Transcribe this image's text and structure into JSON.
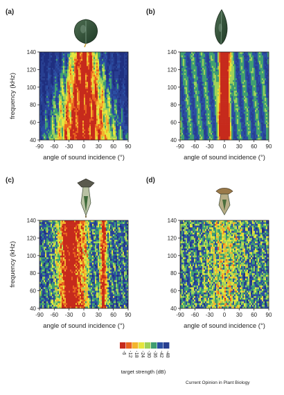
{
  "colors": {
    "scale": [
      "#c62a1c",
      "#e8641f",
      "#f3b42d",
      "#e5e53d",
      "#9ed15a",
      "#3f9e72",
      "#2b4fa3",
      "#283f91",
      "#1f2f80"
    ],
    "axis": "#222222"
  },
  "icons": [
    "leaf-icon",
    "pointed-leaf-icon",
    "pitcher-flower-icon",
    "open-pitcher-flower-icon"
  ],
  "credit": "Current Opinion in Plant Biology",
  "chart_data": [
    {
      "type": "heatmap",
      "panel_label": "(a)",
      "title": "",
      "xlabel": "angle of sound incidence (°)",
      "ylabel": "frequency (kHz)",
      "xlim": [
        -90,
        90
      ],
      "ylim": [
        40,
        140
      ],
      "xticks": [
        "-90",
        "-60",
        "-30",
        "0",
        "30",
        "60",
        "90"
      ],
      "yticks": [
        "40",
        "60",
        "80",
        "100",
        "120",
        "140"
      ],
      "pattern": "broad high-reflection region centred at 0°, widening toward 40 kHz, with interference ripples"
    },
    {
      "type": "heatmap",
      "panel_label": "(b)",
      "title": "",
      "xlabel": "angle of sound incidence (°)",
      "ylabel": "",
      "xlim": [
        -90,
        90
      ],
      "ylim": [
        40,
        140
      ],
      "xticks": [
        "-90",
        "-60",
        "-30",
        "0",
        "30",
        "60",
        "90"
      ],
      "yticks": [
        "40",
        "60",
        "80",
        "100",
        "120",
        "140"
      ],
      "pattern": "narrow high-reflection band at 0°, weak fringes elsewhere"
    },
    {
      "type": "heatmap",
      "panel_label": "(c)",
      "title": "",
      "xlabel": "angle of sound incidence (°)",
      "ylabel": "frequency (kHz)",
      "xlim": [
        -90,
        90
      ],
      "ylim": [
        40,
        140
      ],
      "xticks": [
        "-90",
        "-60",
        "-30",
        "0",
        "30",
        "60",
        "90"
      ],
      "yticks": [
        "40",
        "60",
        "80",
        "100",
        "120",
        "140"
      ],
      "pattern": "strong reflection between -50° and 0° plus a narrow band near +40°"
    },
    {
      "type": "heatmap",
      "panel_label": "(d)",
      "title": "",
      "xlabel": "angle of sound incidence (°)",
      "ylabel": "",
      "xlim": [
        -90,
        90
      ],
      "ylim": [
        40,
        140
      ],
      "xticks": [
        "-90",
        "-60",
        "-30",
        "0",
        "30",
        "60",
        "90"
      ],
      "yticks": [
        "40",
        "60",
        "80",
        "100",
        "120",
        "140"
      ],
      "pattern": "diffuse weaker reflection with a faint central band"
    }
  ],
  "colorbar": {
    "label": "target strength (dB)",
    "ticks": [
      "-6",
      "-12",
      "-18",
      "-24",
      "-30",
      "-36",
      "-42",
      "-48"
    ]
  }
}
